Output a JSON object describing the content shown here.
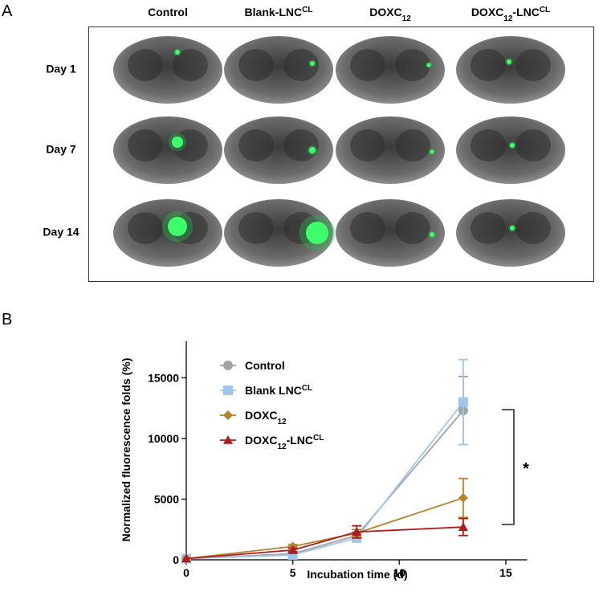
{
  "panel_a": {
    "letter": "A",
    "columns": [
      [
        {
          "t": "Control"
        }
      ],
      [
        {
          "t": "Blank-LNC"
        },
        {
          "sup": "CL"
        }
      ],
      [
        {
          "t": "DOXC"
        },
        {
          "sub": "12"
        }
      ],
      [
        {
          "t": "DOXC"
        },
        {
          "sub": "12"
        },
        {
          "t": "-LNC"
        },
        {
          "sup": "CL"
        }
      ]
    ],
    "rows": [
      "Day 1",
      "Day 7",
      "Day 14"
    ]
  },
  "chart_data": {
    "type": "line",
    "panel_letter": "B",
    "x_label": "Incubation time (d)",
    "y_label": "Normalized fluorescence folds (%)",
    "x": [
      0,
      5,
      8,
      13
    ],
    "xlim": [
      0,
      16
    ],
    "xticks": [
      0,
      5,
      10,
      15
    ],
    "ylim": [
      0,
      18000
    ],
    "yticks": [
      0,
      5000,
      10000,
      15000
    ],
    "series": [
      {
        "name": [
          {
            "t": "Control"
          }
        ],
        "color": "#a3a3a6",
        "marker": "circle",
        "values": [
          100,
          500,
          2000,
          12300
        ],
        "errors": [
          0,
          150,
          300,
          2800
        ]
      },
      {
        "name": [
          {
            "t": "Blank LNC"
          },
          {
            "sup": "CL"
          }
        ],
        "color": "#9fc6ee",
        "marker": "square",
        "values": [
          100,
          400,
          1800,
          13000
        ],
        "errors": [
          0,
          150,
          300,
          3500
        ]
      },
      {
        "name": [
          {
            "t": "DOXC"
          },
          {
            "sub": "12"
          }
        ],
        "color": "#b5832a",
        "marker": "diamond",
        "values": [
          100,
          1100,
          2200,
          5100
        ],
        "errors": [
          0,
          150,
          300,
          1600
        ]
      },
      {
        "name": [
          {
            "t": "DOXC"
          },
          {
            "sub": "12"
          },
          {
            "t": "-LNC"
          },
          {
            "sup": "CL"
          }
        ],
        "color": "#b01c1c",
        "marker": "triangle",
        "values": [
          100,
          800,
          2300,
          2700
        ],
        "errors": [
          0,
          150,
          500,
          700
        ]
      }
    ],
    "annotation": "*"
  }
}
